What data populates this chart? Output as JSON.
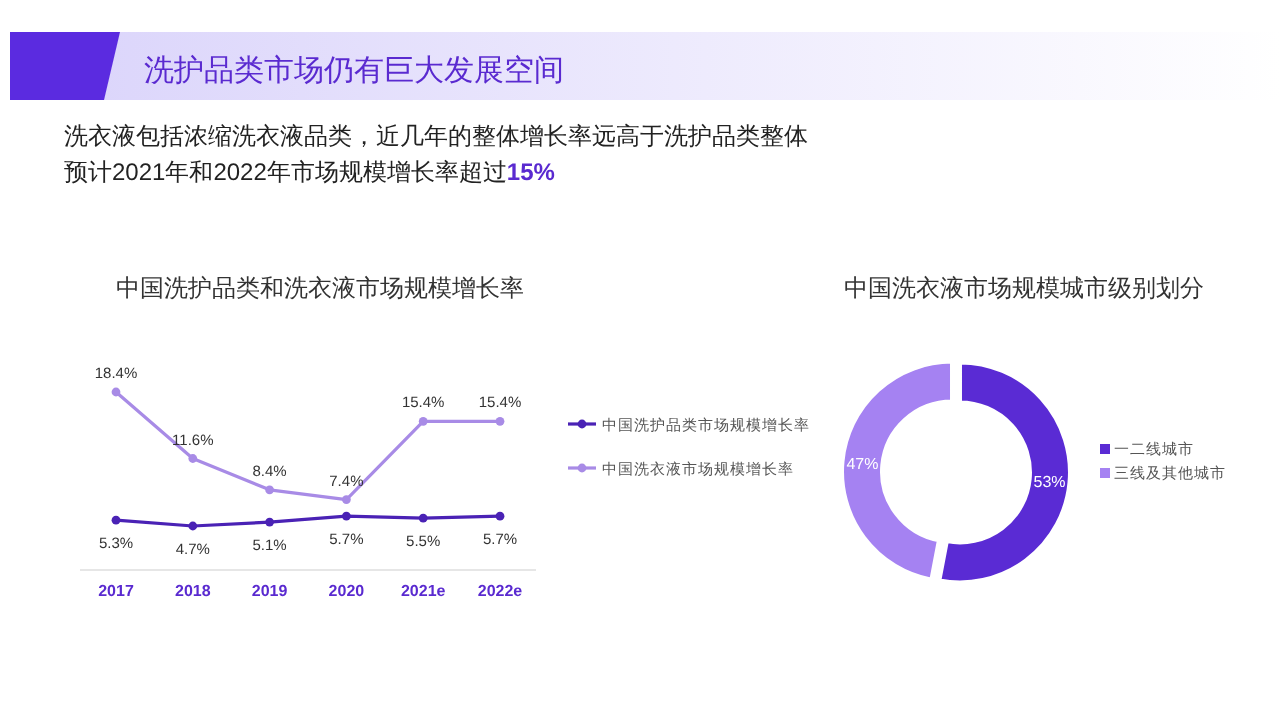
{
  "chart_data": [
    {
      "type": "other",
      "title": "洗护品类市场仍有巨大发展空间",
      "annotations": [
        "洗衣液包括浓缩洗衣液品类，近几年的整体增长率远高于洗护品类整体",
        "预计2021年和2022年市场规模增长率超过15%"
      ]
    },
    {
      "type": "line",
      "title": "中国洗护品类和洗衣液市场规模增长率",
      "categories": [
        "2017",
        "2018",
        "2019",
        "2020",
        "2021e",
        "2022e"
      ],
      "series": [
        {
          "name": "中国洗护品类市场规模增长率",
          "color": "#4a22b5",
          "values": [
            5.3,
            4.7,
            5.1,
            5.7,
            5.5,
            5.7
          ],
          "value_labels": [
            "5.3%",
            "4.7%",
            "5.1%",
            "5.7%",
            "5.5%",
            "5.7%"
          ]
        },
        {
          "name": "中国洗衣液市场规模增长率",
          "color": "#a88be6",
          "values": [
            18.4,
            11.6,
            8.4,
            7.4,
            15.4,
            15.4
          ],
          "value_labels": [
            "18.4%",
            "11.6%",
            "8.4%",
            "7.4%",
            "15.4%",
            "15.4%"
          ]
        }
      ],
      "legend": "right",
      "marker": "circle",
      "line_style": "solid"
    },
    {
      "type": "donut",
      "title": "中国洗衣液市场规模城市级别划分",
      "categories": [
        "一二线城市",
        "三线及其他城市"
      ],
      "values": [
        53,
        47
      ],
      "colors": [
        "#5a2bd4",
        "#a582f2"
      ],
      "value_labels": [
        "53%",
        "47%"
      ],
      "legend": "right"
    }
  ]
}
